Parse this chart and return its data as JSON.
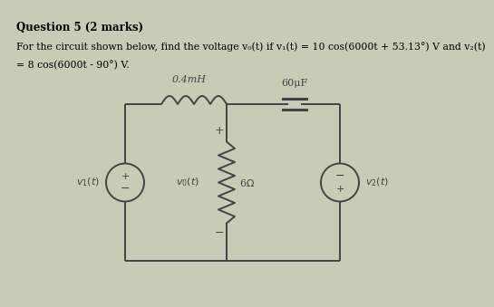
{
  "title_line1": "Question 5 (2 marks)",
  "title_line2": "For the circuit shown below, find the voltage v₀(t) if v₁(t) = 10 cos(6000t + 53.13°) V and v₂(t)",
  "title_line3": "= 8 cos(6000t - 90°) V.",
  "bg_color": "#c8cbb5",
  "circuit_color": "#444444",
  "text_color": "#111111",
  "inductor_label": "0.4mH",
  "capacitor_label": "60μF",
  "resistor_label": "6Ω",
  "v0_label": "v₀(t)",
  "v1_label": "v₁(t)",
  "v2_label": "v₂(t)"
}
